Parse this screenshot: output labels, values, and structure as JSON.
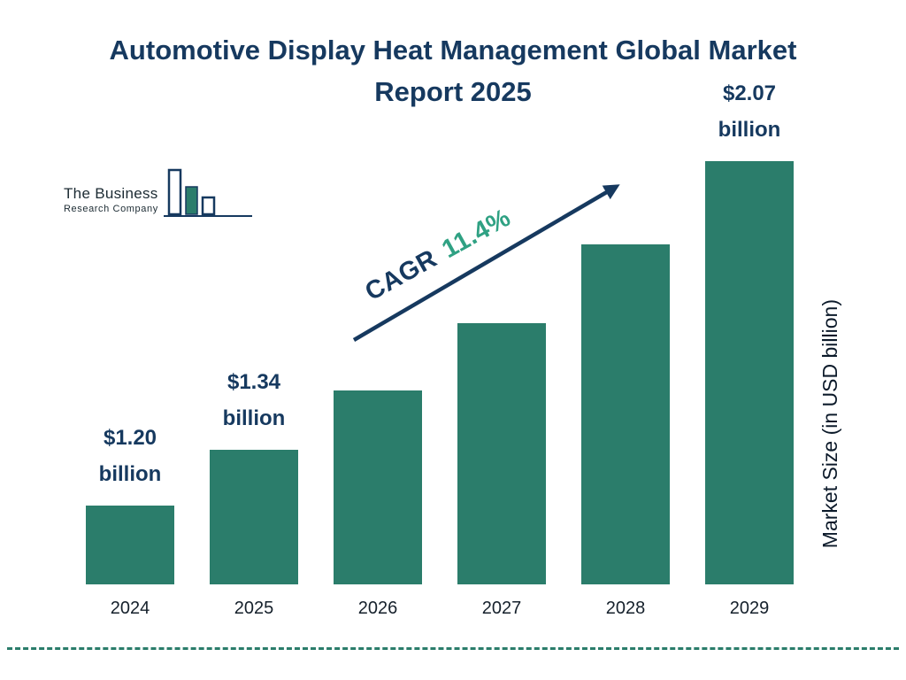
{
  "logo": {
    "line1": "The Business",
    "line2": "Research Company"
  },
  "annotation": {
    "cagr_label": "CAGR",
    "cagr_value": "11.4%"
  },
  "colors": {
    "bar": "#2b7d6b",
    "navy": "#16395f",
    "cagr_green": "#2fa183",
    "dashed": "#2b7d6b"
  },
  "chart_data": {
    "type": "bar",
    "title": "Automotive Display Heat Management Global Market Report 2025",
    "categories": [
      "2024",
      "2025",
      "2026",
      "2027",
      "2028",
      "2029"
    ],
    "values": [
      1.2,
      1.34,
      1.49,
      1.66,
      1.86,
      2.07
    ],
    "bar_labels": [
      "$1.20\nbillion",
      "$1.34\nbillion",
      null,
      null,
      null,
      "$2.07\nbillion"
    ],
    "ylabel": "Market Size (in USD billion)",
    "xlabel": "",
    "ylim": [
      1.0,
      2.07
    ],
    "grid": false,
    "legend": false,
    "cagr": "11.4%"
  }
}
